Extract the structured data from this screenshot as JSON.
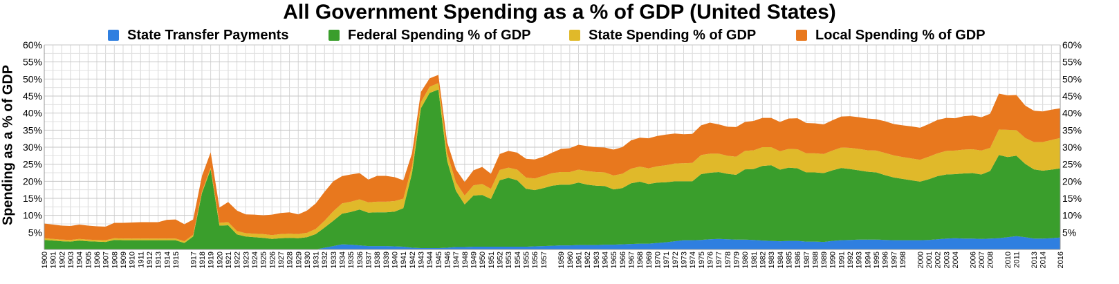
{
  "chart_data": {
    "type": "area",
    "title": "All Government Spending as a % of GDP (United States)",
    "ylabel": "Spending as a % of GDP",
    "xlabel": "",
    "ylim": [
      0,
      60
    ],
    "yticks": [
      "5%",
      "10%",
      "15%",
      "20%",
      "25%",
      "30%",
      "35%",
      "40%",
      "45%",
      "50%",
      "55%",
      "60%"
    ],
    "grid": true,
    "legend_position": "top",
    "stacked": true,
    "x_start": 1900,
    "x_end": 2016,
    "series": [
      {
        "name": "State Transfer Payments",
        "color": "#2f7fe0",
        "values": [
          0,
          0,
          0,
          0,
          0,
          0,
          0,
          0,
          0,
          0,
          0,
          0,
          0,
          0,
          0,
          0,
          0,
          0,
          0,
          0,
          0,
          0,
          0,
          0,
          0,
          0,
          0,
          0,
          0,
          0,
          0,
          0,
          0.5,
          1.0,
          1.5,
          1.4,
          1.2,
          1.0,
          1.0,
          1.0,
          0.9,
          0.8,
          0.5,
          0.4,
          0.4,
          0.4,
          0.5,
          0.7,
          0.7,
          0.8,
          0.8,
          0.8,
          0.8,
          0.8,
          0.8,
          0.8,
          0.9,
          1.0,
          1.1,
          1.2,
          1.2,
          1.3,
          1.3,
          1.3,
          1.4,
          1.4,
          1.5,
          1.6,
          1.7,
          1.7,
          1.9,
          2.1,
          2.4,
          2.7,
          2.7,
          2.8,
          3.0,
          3.1,
          3.0,
          2.9,
          2.9,
          2.8,
          2.6,
          2.5,
          2.4,
          2.5,
          2.5,
          2.3,
          2.3,
          2.2,
          2.5,
          2.7,
          2.8,
          2.9,
          2.9,
          2.9,
          2.8,
          2.7,
          2.7,
          2.7,
          2.7,
          2.8,
          3.0,
          3.2,
          3.3,
          3.2,
          3.2,
          3.1,
          3.2,
          3.3,
          3.6,
          3.9,
          3.6,
          3.2,
          3.2,
          3.3,
          3.5
        ]
      },
      {
        "name": "Federal Spending % of GDP",
        "color": "#3a9e2c",
        "values": [
          2.8,
          2.6,
          2.4,
          2.3,
          2.6,
          2.4,
          2.3,
          2.2,
          2.8,
          2.7,
          2.7,
          2.7,
          2.7,
          2.7,
          2.7,
          2.7,
          1.9,
          3.8,
          16.5,
          23.5,
          7.0,
          7.1,
          4.4,
          3.8,
          3.6,
          3.4,
          3.1,
          3.3,
          3.4,
          3.3,
          3.6,
          4.5,
          5.9,
          7.4,
          9.0,
          9.6,
          10.5,
          9.8,
          9.9,
          9.9,
          10.2,
          11.3,
          22.0,
          41.0,
          45.5,
          46.5,
          25.5,
          16.5,
          12.5,
          15.0,
          15.2,
          14.0,
          19.5,
          20.2,
          19.5,
          17.0,
          16.5,
          17.0,
          17.6,
          17.8,
          17.8,
          18.3,
          17.7,
          17.4,
          17.2,
          16.2,
          16.5,
          17.8,
          18.2,
          17.5,
          17.7,
          17.6,
          17.6,
          17.3,
          17.3,
          19.3,
          19.5,
          19.6,
          19.2,
          19.0,
          20.6,
          20.8,
          21.9,
          22.2,
          21.0,
          21.5,
          21.3,
          20.3,
          20.3,
          20.2,
          20.7,
          21.2,
          20.8,
          20.3,
          19.9,
          19.7,
          19.0,
          18.4,
          18.0,
          17.6,
          17.2,
          17.8,
          18.5,
          18.8,
          18.8,
          19.1,
          19.2,
          18.9,
          19.8,
          24.4,
          23.5,
          23.6,
          21.5,
          20.3,
          19.9,
          20.1,
          20.3
        ]
      },
      {
        "name": "State Spending % of GDP",
        "color": "#e0b92a",
        "values": [
          0.5,
          0.5,
          0.5,
          0.5,
          0.5,
          0.5,
          0.5,
          0.5,
          0.5,
          0.5,
          0.5,
          0.5,
          0.5,
          0.5,
          0.5,
          0.5,
          0.5,
          0.5,
          0.5,
          0.5,
          0.8,
          0.9,
          1.0,
          1.0,
          1.0,
          1.1,
          1.1,
          1.2,
          1.2,
          1.2,
          1.3,
          1.5,
          2.0,
          2.8,
          3.0,
          3.0,
          3.0,
          3.0,
          3.1,
          3.1,
          3.1,
          2.8,
          2.0,
          1.8,
          1.8,
          1.9,
          2.3,
          2.5,
          2.6,
          3.0,
          3.2,
          3.0,
          3.0,
          3.0,
          3.1,
          3.3,
          3.4,
          3.6,
          3.7,
          3.7,
          3.7,
          3.8,
          4.0,
          4.0,
          4.0,
          4.1,
          4.2,
          4.3,
          4.4,
          4.6,
          4.8,
          5.0,
          5.2,
          5.3,
          5.4,
          5.6,
          5.6,
          5.4,
          5.3,
          5.3,
          5.4,
          5.5,
          5.5,
          5.3,
          5.4,
          5.5,
          5.6,
          5.6,
          5.6,
          5.6,
          5.8,
          6.0,
          6.2,
          6.3,
          6.3,
          6.4,
          6.5,
          6.5,
          6.4,
          6.4,
          6.4,
          6.6,
          6.7,
          6.9,
          6.9,
          7.0,
          7.0,
          7.0,
          6.8,
          7.5,
          8.0,
          7.5,
          7.6,
          8.0,
          8.4,
          8.7,
          8.9
        ]
      },
      {
        "name": "Local Spending % of GDP",
        "color": "#e8781e",
        "values": [
          4.3,
          4.2,
          4.1,
          4.1,
          4.2,
          4.1,
          4.0,
          4.0,
          4.5,
          4.6,
          4.7,
          4.8,
          4.8,
          4.8,
          5.5,
          5.6,
          5.0,
          4.5,
          4.5,
          4.5,
          4.5,
          5.9,
          6.0,
          5.5,
          5.6,
          5.5,
          6.0,
          6.2,
          6.3,
          5.8,
          6.5,
          7.5,
          8.5,
          8.8,
          8.0,
          8.0,
          7.7,
          6.7,
          7.6,
          7.6,
          7.0,
          5.4,
          3.8,
          3.0,
          2.5,
          2.4,
          3.2,
          3.8,
          4.0,
          4.4,
          5.0,
          4.4,
          4.7,
          4.9,
          5.0,
          5.5,
          5.6,
          5.6,
          6.0,
          6.8,
          7.0,
          7.3,
          7.3,
          7.3,
          7.3,
          7.6,
          7.8,
          8.3,
          8.5,
          8.8,
          8.9,
          9.0,
          8.8,
          8.5,
          8.5,
          8.7,
          9.1,
          8.6,
          8.5,
          8.7,
          8.5,
          8.6,
          8.6,
          8.6,
          8.6,
          8.9,
          9.1,
          8.9,
          8.8,
          8.7,
          8.9,
          9.1,
          9.3,
          9.3,
          9.3,
          9.2,
          9.3,
          9.2,
          9.3,
          9.4,
          9.4,
          9.6,
          9.8,
          9.7,
          9.5,
          9.8,
          9.9,
          9.8,
          10.0,
          10.5,
          10.1,
          10.3,
          9.5,
          9.2,
          9.0,
          8.9,
          8.7
        ]
      }
    ]
  }
}
